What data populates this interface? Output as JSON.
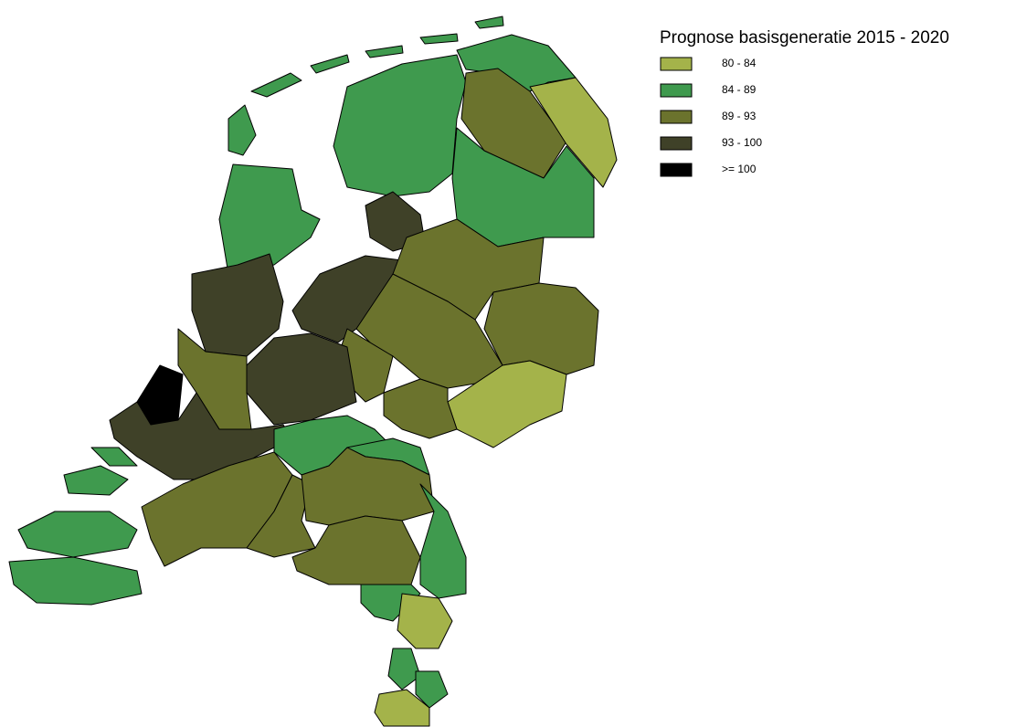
{
  "legend": {
    "title": "Prognose basisgeneratie 2015 - 2020",
    "classes": [
      {
        "label": "80 - 84",
        "color": "#a4b34a"
      },
      {
        "label": "84 - 89",
        "color": "#3f9a4e"
      },
      {
        "label": "89 - 93",
        "color": "#6b732d"
      },
      {
        "label": "93 - 100",
        "color": "#3f4128"
      },
      {
        "label": ">= 100",
        "color": "#000000"
      }
    ]
  }
}
